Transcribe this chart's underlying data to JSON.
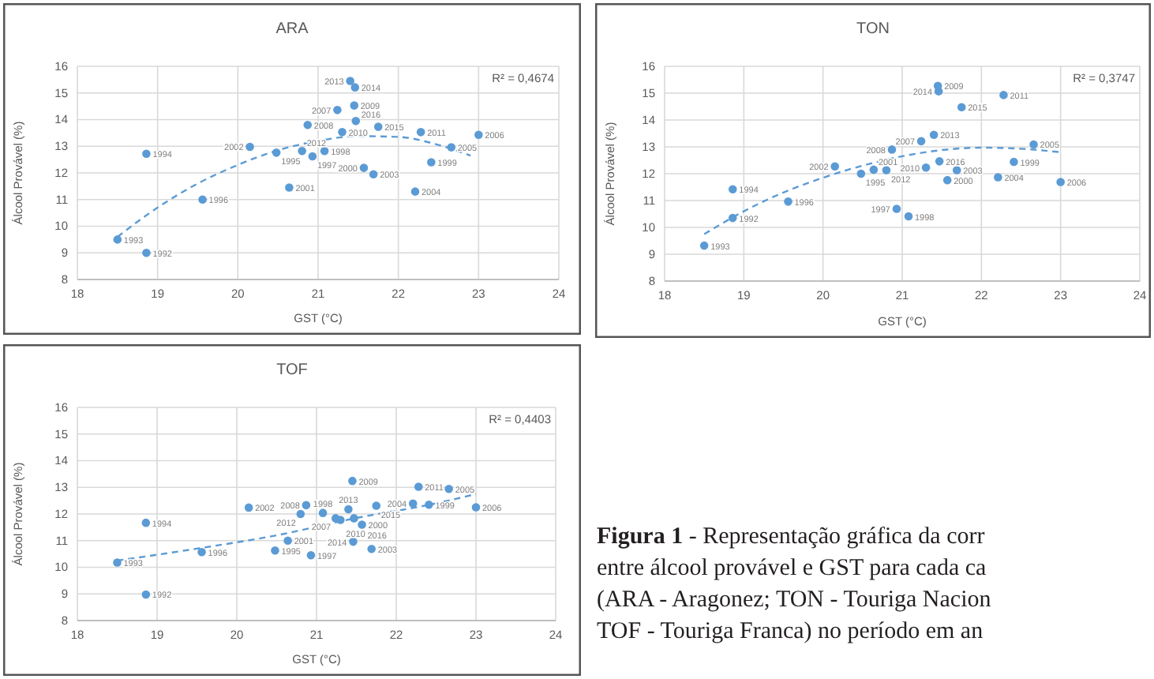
{
  "chart_data": [
    {
      "type": "scatter",
      "title": "ARA",
      "xlabel": "GST (°C)",
      "ylabel": "Álcool Provável (%)",
      "xlim": [
        18,
        24
      ],
      "xticks": [
        18,
        19,
        20,
        21,
        22,
        23,
        24
      ],
      "ylim": [
        8,
        16
      ],
      "yticks": [
        8,
        9,
        10,
        11,
        12,
        13,
        14,
        15,
        16
      ],
      "grid": true,
      "series": [
        {
          "marker": "circle",
          "color": "#5b9bd5",
          "x": [
            18.86,
            18.5,
            18.86,
            20.48,
            19.56,
            20.93,
            21.08,
            22.41,
            21.57,
            20.64,
            20.15,
            21.69,
            22.21,
            22.66,
            23.0,
            21.24,
            20.87,
            21.45,
            21.3,
            22.28,
            20.8,
            21.4,
            21.46,
            21.75,
            21.47
          ],
          "values": [
            9.0,
            9.5,
            12.72,
            12.76,
            11.0,
            12.62,
            12.82,
            12.4,
            12.19,
            11.45,
            12.98,
            11.95,
            11.3,
            12.96,
            13.43,
            14.36,
            13.8,
            14.53,
            13.53,
            13.53,
            12.82,
            15.45,
            15.21,
            13.73,
            13.95
          ]
        },
        {
          "type": "line",
          "line_style": "dashed",
          "color": "#5b9bd5",
          "x": [
            18.5,
            19,
            19.5,
            20,
            20.5,
            21,
            21.5,
            22,
            22.5,
            22.9
          ],
          "values": [
            9.6,
            10.7,
            11.6,
            12.3,
            12.85,
            13.2,
            13.38,
            13.35,
            13.05,
            12.65
          ]
        }
      ],
      "annotations": [
        {
          "text": "1992",
          "x": 18.86,
          "y": 9.0
        },
        {
          "text": "1993",
          "x": 18.5,
          "y": 9.5
        },
        {
          "text": "1994",
          "x": 18.86,
          "y": 12.72
        },
        {
          "text": "1995",
          "x": 20.48,
          "y": 12.76
        },
        {
          "text": "1996",
          "x": 19.56,
          "y": 11.0
        },
        {
          "text": "1997",
          "x": 20.93,
          "y": 12.62
        },
        {
          "text": "1998",
          "x": 21.08,
          "y": 12.82
        },
        {
          "text": "1999",
          "x": 22.41,
          "y": 12.4
        },
        {
          "text": "2000",
          "x": 21.57,
          "y": 12.19
        },
        {
          "text": "2001",
          "x": 20.64,
          "y": 11.45
        },
        {
          "text": "2002",
          "x": 20.15,
          "y": 12.98
        },
        {
          "text": "2003",
          "x": 21.69,
          "y": 11.95
        },
        {
          "text": "2004",
          "x": 22.21,
          "y": 11.3
        },
        {
          "text": "2005",
          "x": 22.66,
          "y": 12.96
        },
        {
          "text": "2006",
          "x": 23.0,
          "y": 13.43
        },
        {
          "text": "2007",
          "x": 21.24,
          "y": 14.36
        },
        {
          "text": "2008",
          "x": 20.87,
          "y": 13.8
        },
        {
          "text": "2009",
          "x": 21.45,
          "y": 14.53
        },
        {
          "text": "2010",
          "x": 21.3,
          "y": 13.53
        },
        {
          "text": "2011",
          "x": 22.28,
          "y": 13.53
        },
        {
          "text": "2012",
          "x": 20.8,
          "y": 12.82
        },
        {
          "text": "2013",
          "x": 21.4,
          "y": 15.45
        },
        {
          "text": "2014",
          "x": 21.46,
          "y": 15.21
        },
        {
          "text": "2015",
          "x": 21.75,
          "y": 13.73
        },
        {
          "text": "2016",
          "x": 21.47,
          "y": 13.95
        },
        "R² = 0,4674"
      ]
    },
    {
      "type": "scatter",
      "title": "TON",
      "xlabel": "GST (°C)",
      "ylabel": "Álcool Provável (%)",
      "xlim": [
        18,
        24
      ],
      "xticks": [
        18,
        19,
        20,
        21,
        22,
        23,
        24
      ],
      "ylim": [
        8,
        16
      ],
      "yticks": [
        8,
        9,
        10,
        11,
        12,
        13,
        14,
        15,
        16
      ],
      "grid": true,
      "series": [
        {
          "marker": "circle",
          "color": "#5b9bd5",
          "x": [
            18.86,
            18.5,
            18.86,
            20.48,
            19.56,
            20.93,
            21.08,
            22.41,
            21.57,
            20.64,
            20.15,
            21.69,
            22.21,
            22.66,
            23.0,
            21.24,
            20.87,
            21.45,
            21.3,
            22.28,
            20.8,
            21.4,
            21.46,
            21.75,
            21.47
          ],
          "values": [
            10.35,
            9.32,
            11.42,
            12.0,
            10.96,
            10.69,
            10.41,
            12.44,
            11.76,
            12.15,
            12.27,
            12.13,
            11.87,
            13.09,
            11.69,
            13.21,
            12.9,
            15.27,
            12.23,
            14.93,
            12.13,
            13.45,
            15.07,
            14.48,
            12.46
          ]
        },
        {
          "type": "line",
          "line_style": "dashed",
          "color": "#5b9bd5",
          "x": [
            18.5,
            19,
            19.5,
            20,
            20.5,
            21,
            21.5,
            22,
            22.5,
            23
          ],
          "values": [
            9.75,
            10.6,
            11.3,
            11.85,
            12.3,
            12.65,
            12.88,
            12.97,
            12.93,
            12.8
          ]
        }
      ],
      "annotations": [
        {
          "text": "1992",
          "x": 18.86,
          "y": 10.35
        },
        {
          "text": "1993",
          "x": 18.5,
          "y": 9.32
        },
        {
          "text": "1994",
          "x": 18.86,
          "y": 11.42
        },
        {
          "text": "1995",
          "x": 20.48,
          "y": 12.0
        },
        {
          "text": "1996",
          "x": 19.56,
          "y": 10.96
        },
        {
          "text": "1997",
          "x": 20.93,
          "y": 10.69
        },
        {
          "text": "1998",
          "x": 21.08,
          "y": 10.41
        },
        {
          "text": "1999",
          "x": 22.41,
          "y": 12.44
        },
        {
          "text": "2000",
          "x": 21.57,
          "y": 11.76
        },
        {
          "text": "2001",
          "x": 20.64,
          "y": 12.15
        },
        {
          "text": "2002",
          "x": 20.15,
          "y": 12.27
        },
        {
          "text": "2003",
          "x": 21.69,
          "y": 12.13
        },
        {
          "text": "2004",
          "x": 22.21,
          "y": 11.87
        },
        {
          "text": "2005",
          "x": 22.66,
          "y": 13.09
        },
        {
          "text": "2006",
          "x": 23.0,
          "y": 11.69
        },
        {
          "text": "2007",
          "x": 21.24,
          "y": 13.21
        },
        {
          "text": "2008",
          "x": 20.87,
          "y": 12.9
        },
        {
          "text": "2009",
          "x": 21.45,
          "y": 15.27
        },
        {
          "text": "2010",
          "x": 21.3,
          "y": 12.23
        },
        {
          "text": "2011",
          "x": 22.28,
          "y": 14.93
        },
        {
          "text": "2012",
          "x": 20.8,
          "y": 12.13
        },
        {
          "text": "2013",
          "x": 21.4,
          "y": 13.45
        },
        {
          "text": "2014",
          "x": 21.46,
          "y": 15.07
        },
        {
          "text": "2015",
          "x": 21.75,
          "y": 14.48
        },
        {
          "text": "2016",
          "x": 21.47,
          "y": 12.46
        },
        "R² = 0,3747"
      ]
    },
    {
      "type": "scatter",
      "title": "TOF",
      "xlabel": "GST (°C)",
      "ylabel": "Álcool Provável (%)",
      "xlim": [
        18,
        24
      ],
      "xticks": [
        18,
        19,
        20,
        21,
        22,
        23,
        24
      ],
      "ylim": [
        8,
        16
      ],
      "yticks": [
        8,
        9,
        10,
        11,
        12,
        13,
        14,
        15,
        16
      ],
      "grid": true,
      "series": [
        {
          "marker": "circle",
          "color": "#5b9bd5",
          "x": [
            18.86,
            18.5,
            18.86,
            20.48,
            19.56,
            20.93,
            21.08,
            22.41,
            21.57,
            20.64,
            20.15,
            21.69,
            22.21,
            22.66,
            23.0,
            21.24,
            20.87,
            21.45,
            21.3,
            22.28,
            20.8,
            21.4,
            21.46,
            21.75,
            21.47
          ],
          "values": [
            8.98,
            10.18,
            11.67,
            10.63,
            10.57,
            10.45,
            12.04,
            12.35,
            11.6,
            11.0,
            12.24,
            10.69,
            12.39,
            12.94,
            12.25,
            11.84,
            12.33,
            13.24,
            11.78,
            13.02,
            12.0,
            12.18,
            10.96,
            12.31,
            11.84
          ]
        },
        {
          "type": "line",
          "line_style": "dashed",
          "color": "#5b9bd5",
          "x": [
            18.5,
            19.5,
            20.5,
            21.5,
            22.5,
            23
          ],
          "values": [
            10.25,
            10.7,
            11.2,
            11.85,
            12.4,
            12.75
          ]
        }
      ],
      "annotations": [
        {
          "text": "1992",
          "x": 18.86,
          "y": 8.98
        },
        {
          "text": "1993",
          "x": 18.5,
          "y": 10.18
        },
        {
          "text": "1994",
          "x": 18.86,
          "y": 11.67
        },
        {
          "text": "1995",
          "x": 20.48,
          "y": 10.63
        },
        {
          "text": "1996",
          "x": 19.56,
          "y": 10.57
        },
        {
          "text": "1997",
          "x": 20.93,
          "y": 10.45
        },
        {
          "text": "1998",
          "x": 21.08,
          "y": 12.04
        },
        {
          "text": "1999",
          "x": 22.41,
          "y": 12.35
        },
        {
          "text": "2000",
          "x": 21.57,
          "y": 11.6
        },
        {
          "text": "2001",
          "x": 20.64,
          "y": 11.0
        },
        {
          "text": "2002",
          "x": 20.15,
          "y": 12.24
        },
        {
          "text": "2003",
          "x": 21.69,
          "y": 10.69
        },
        {
          "text": "2004",
          "x": 22.21,
          "y": 12.39
        },
        {
          "text": "2005",
          "x": 22.66,
          "y": 12.94
        },
        {
          "text": "2006",
          "x": 23.0,
          "y": 12.25
        },
        {
          "text": "2007",
          "x": 21.24,
          "y": 11.84
        },
        {
          "text": "2008",
          "x": 20.87,
          "y": 12.33
        },
        {
          "text": "2009",
          "x": 21.45,
          "y": 13.24
        },
        {
          "text": "2010",
          "x": 21.3,
          "y": 11.78
        },
        {
          "text": "2011",
          "x": 22.28,
          "y": 13.02
        },
        {
          "text": "2012",
          "x": 20.8,
          "y": 12.0
        },
        {
          "text": "2013",
          "x": 21.4,
          "y": 12.18
        },
        {
          "text": "2014",
          "x": 21.46,
          "y": 10.96
        },
        {
          "text": "2015",
          "x": 21.75,
          "y": 12.31
        },
        {
          "text": "2016",
          "x": 21.47,
          "y": 11.84
        },
        "R² = 0,4403"
      ]
    },
    {
      "type": "other",
      "title": "Figura 1",
      "annotations": [
        "- Representação gráfica da corr",
        "entre álcool provável e GST para cada ca",
        "(ARA - Aragonez; TON - Touriga Nacion",
        "TOF - Touriga Franca) no período em an"
      ]
    }
  ]
}
